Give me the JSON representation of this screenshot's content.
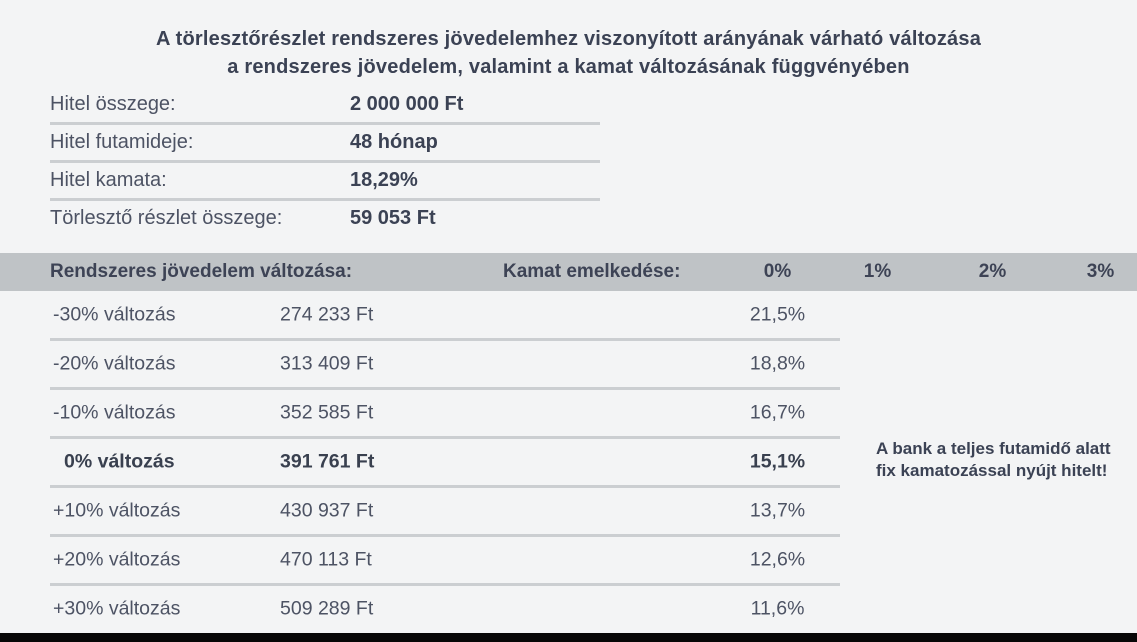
{
  "title": {
    "line1": "A törlesztőrészlet rendszeres jövedelemhez viszonyított arányának várható változása",
    "line2": "a rendszeres jövedelem, valamint a kamat változásának függvényében"
  },
  "loan_info": {
    "rows": [
      {
        "label": "Hitel összege:",
        "value": "2 000 000 Ft"
      },
      {
        "label": "Hitel futamideje:",
        "value": "48 hónap"
      },
      {
        "label": "Hitel kamata:",
        "value": "18,29%"
      },
      {
        "label": "Törlesztő részlet összege:",
        "value": "59 053 Ft"
      }
    ]
  },
  "table": {
    "header": {
      "income_change_label": "Rendszeres jövedelem változása:",
      "rate_increase_label": "Kamat emelkedése:",
      "rate_columns": [
        "0%",
        "1%",
        "2%",
        "3%"
      ]
    },
    "rows": [
      {
        "change": "-30% változás",
        "income": "274 233 Ft",
        "ratio": "21,5%"
      },
      {
        "change": "-20% változás",
        "income": "313 409 Ft",
        "ratio": "18,8%"
      },
      {
        "change": "-10% változás",
        "income": "352 585 Ft",
        "ratio": "16,7%"
      },
      {
        "change": "0% változás",
        "income": "391 761 Ft",
        "ratio": "15,1%"
      },
      {
        "change": "+10% változás",
        "income": "430 937 Ft",
        "ratio": "13,7%"
      },
      {
        "change": "+20% változás",
        "income": "470 113 Ft",
        "ratio": "12,6%"
      },
      {
        "change": "+30% változás",
        "income": "509 289 Ft",
        "ratio": "11,6%"
      }
    ]
  },
  "note": {
    "line1": "A bank a teljes futamidő alatt",
    "line2": "fix kamatozással nyújt hitelt!"
  },
  "colors": {
    "background": "#f3f4f5",
    "header_band": "#bfc3c6",
    "text_navy": "#3b4254",
    "text_row": "#4d5364",
    "divider": "#cbced1",
    "bottom_bar": "#070707"
  },
  "chart_data": {
    "type": "table",
    "title": "A törlesztőrészlet rendszeres jövedelemhez viszonyított arányának várható változása a rendszeres jövedelem, valamint a kamat változásának függvényében",
    "loan_parameters": {
      "Hitel összege": "2 000 000 Ft",
      "Hitel futamideje": "48 hónap",
      "Hitel kamata": "18,29%",
      "Törlesztő részlet összege": "59 053 Ft"
    },
    "columns": [
      "Rendszeres jövedelem változása",
      "Rendszeres jövedelem",
      "Kamat emelkedése: 0%",
      "Kamat emelkedése: 1%",
      "Kamat emelkedése: 2%",
      "Kamat emelkedése: 3%"
    ],
    "rows": [
      [
        "-30% változás",
        "274 233 Ft",
        "21,5%",
        "",
        "",
        ""
      ],
      [
        "-20% változás",
        "313 409 Ft",
        "18,8%",
        "",
        "",
        ""
      ],
      [
        "-10% változás",
        "352 585 Ft",
        "16,7%",
        "",
        "",
        ""
      ],
      [
        "0% változás",
        "391 761 Ft",
        "15,1%",
        "",
        "",
        ""
      ],
      [
        "+10% változás",
        "430 937 Ft",
        "13,7%",
        "",
        "",
        ""
      ],
      [
        "+20% változás",
        "470 113 Ft",
        "12,6%",
        "",
        "",
        ""
      ],
      [
        "+30% változás",
        "509 289 Ft",
        "11,6%",
        "",
        "",
        ""
      ]
    ],
    "annotation": "A bank a teljes futamidő alatt fix kamatozással nyújt hitelt!",
    "highlighted_row": "0% változás"
  }
}
